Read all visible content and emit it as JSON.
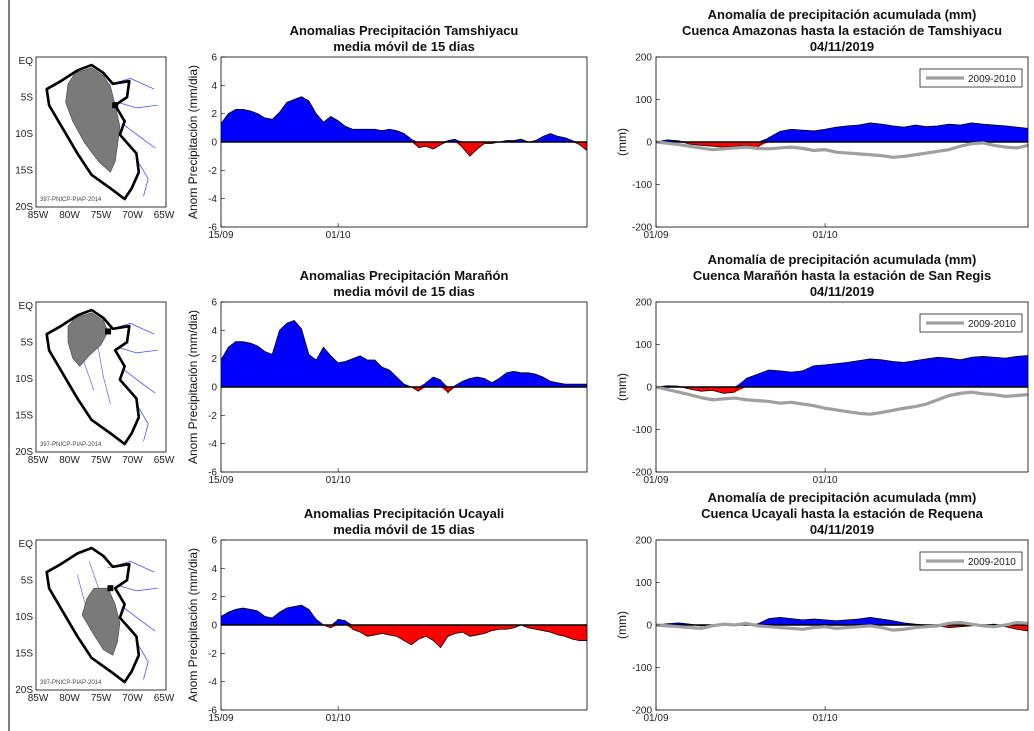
{
  "rows": [
    {
      "map": {
        "lat_ticks": [
          "EQ",
          "5S",
          "10S",
          "15S",
          "20S"
        ],
        "lon_ticks": [
          "85W",
          "80W",
          "75W",
          "70W",
          "65W"
        ],
        "watermark": "397-PNICP-PIAP-2014",
        "highlight": "amazonas"
      },
      "anomaly": {
        "title_lines": [
          "Anomalias Precipitación Tamshiyacu",
          "media móvil de 15 dias"
        ],
        "ylabel": "Anom Precipitación (mm/dia)",
        "ylim": [
          -6,
          6
        ],
        "yticks": [
          6,
          4,
          2,
          0,
          -2,
          -4,
          -6
        ],
        "xticks": [
          {
            "label": "15/09",
            "day": 0
          },
          {
            "label": "01/10",
            "day": 16
          }
        ],
        "x_range": [
          0,
          50
        ],
        "positive_color": "#0000ff",
        "negative_color": "#ff0000",
        "series_x": [
          0,
          1,
          2,
          3,
          4,
          5,
          6,
          7,
          8,
          9,
          10,
          11,
          12,
          13,
          14,
          15,
          16,
          17,
          18,
          19,
          20,
          21,
          22,
          23,
          24,
          25,
          26,
          27,
          28,
          29,
          30,
          31,
          32,
          33,
          34,
          35,
          36,
          37,
          38,
          39,
          40,
          41,
          42,
          43,
          44,
          45,
          46,
          47,
          48,
          49,
          50
        ],
        "series_y": [
          1.3,
          2.0,
          2.3,
          2.3,
          2.2,
          2.0,
          1.7,
          1.6,
          2.1,
          2.8,
          3.0,
          3.2,
          2.9,
          2.0,
          1.4,
          1.8,
          1.5,
          1.1,
          0.9,
          0.9,
          0.9,
          0.9,
          0.8,
          0.9,
          0.8,
          0.6,
          0.2,
          -0.4,
          -0.3,
          -0.5,
          -0.2,
          0.1,
          0.2,
          -0.4,
          -1.0,
          -0.5,
          -0.1,
          -0.1,
          0.0,
          0.1,
          0.1,
          0.2,
          0.0,
          0.1,
          0.4,
          0.6,
          0.4,
          0.3,
          0.1,
          -0.2,
          -0.6
        ]
      },
      "cumulative": {
        "title_lines": [
          "Anomalía de precipitación acumulada (mm)",
          "Cuenca Amazonas hasta la estación de Tamshiyacu",
          "04/11/2019"
        ],
        "ylabel": "(mm)",
        "ylim": [
          -200,
          200
        ],
        "yticks": [
          200,
          100,
          0,
          -100,
          -200
        ],
        "xticks": [
          {
            "label": "01/09",
            "day": 0
          },
          {
            "label": "01/10",
            "day": 30
          }
        ],
        "x_range": [
          0,
          66
        ],
        "legend": "2009-2010",
        "legend_color": "#a0a0a0",
        "series_x": [
          0,
          2,
          4,
          6,
          8,
          10,
          12,
          14,
          16,
          18,
          20,
          22,
          24,
          26,
          28,
          30,
          32,
          34,
          36,
          38,
          40,
          42,
          44,
          46,
          48,
          50,
          52,
          54,
          56,
          58,
          60,
          62,
          64,
          66
        ],
        "current": [
          0,
          5,
          3,
          -5,
          -8,
          -10,
          -12,
          -10,
          -8,
          -12,
          10,
          25,
          30,
          28,
          26,
          30,
          35,
          38,
          40,
          45,
          42,
          38,
          35,
          40,
          36,
          38,
          42,
          40,
          45,
          42,
          40,
          38,
          35,
          32
        ],
        "reference": [
          0,
          -3,
          -6,
          -10,
          -14,
          -18,
          -16,
          -14,
          -12,
          -15,
          -16,
          -14,
          -12,
          -15,
          -20,
          -18,
          -24,
          -26,
          -28,
          -30,
          -32,
          -36,
          -34,
          -30,
          -26,
          -22,
          -18,
          -10,
          -4,
          -2,
          -8,
          -12,
          -14,
          -8
        ]
      }
    },
    {
      "map": {
        "lat_ticks": [
          "EQ",
          "5S",
          "10S",
          "15S",
          "20S"
        ],
        "lon_ticks": [
          "85W",
          "80W",
          "75W",
          "70W",
          "65W"
        ],
        "watermark": "397-PNICP-PIAP-2014",
        "highlight": "maranon"
      },
      "anomaly": {
        "title_lines": [
          "Anomalias Precipitación Marañón",
          "media móvil de 15 dias"
        ],
        "ylabel": "Anom Precipitación (mm/dia)",
        "ylim": [
          -6,
          6
        ],
        "yticks": [
          6,
          4,
          2,
          0,
          -2,
          -4,
          -6
        ],
        "xticks": [
          {
            "label": "15/09",
            "day": 0
          },
          {
            "label": "01/10",
            "day": 16
          }
        ],
        "x_range": [
          0,
          50
        ],
        "positive_color": "#0000ff",
        "negative_color": "#ff0000",
        "series_x": [
          0,
          1,
          2,
          3,
          4,
          5,
          6,
          7,
          8,
          9,
          10,
          11,
          12,
          13,
          14,
          15,
          16,
          17,
          18,
          19,
          20,
          21,
          22,
          23,
          24,
          25,
          26,
          27,
          28,
          29,
          30,
          31,
          32,
          33,
          34,
          35,
          36,
          37,
          38,
          39,
          40,
          41,
          42,
          43,
          44,
          45,
          46,
          47,
          48,
          49,
          50
        ],
        "series_y": [
          1.9,
          2.8,
          3.2,
          3.2,
          3.1,
          2.9,
          2.5,
          2.3,
          4.0,
          4.5,
          4.7,
          4.1,
          2.3,
          1.9,
          2.8,
          2.2,
          1.7,
          1.8,
          2.0,
          2.2,
          1.9,
          1.9,
          1.4,
          1.2,
          0.7,
          0.2,
          0.0,
          -0.3,
          0.3,
          0.7,
          0.5,
          -0.4,
          0.1,
          0.4,
          0.6,
          0.7,
          0.6,
          0.3,
          0.6,
          1.0,
          1.1,
          1.0,
          1.0,
          0.9,
          0.7,
          0.4,
          0.3,
          0.2,
          0.2,
          0.2,
          0.2
        ]
      },
      "cumulative": {
        "title_lines": [
          "Anomalía de precipitación acumulada (mm)",
          "Cuenca Marañón hasta la estación de San Regis",
          "04/11/2019"
        ],
        "ylabel": "(mm)",
        "ylim": [
          -200,
          200
        ],
        "yticks": [
          200,
          100,
          0,
          -100,
          -200
        ],
        "xticks": [
          {
            "label": "01/09",
            "day": 0
          },
          {
            "label": "01/10",
            "day": 30
          }
        ],
        "x_range": [
          0,
          66
        ],
        "legend": "2009-2010",
        "legend_color": "#a0a0a0",
        "series_x": [
          0,
          2,
          4,
          6,
          8,
          10,
          12,
          14,
          16,
          18,
          20,
          22,
          24,
          26,
          28,
          30,
          32,
          34,
          36,
          38,
          40,
          42,
          44,
          46,
          48,
          50,
          52,
          54,
          56,
          58,
          60,
          62,
          64,
          66
        ],
        "current": [
          0,
          3,
          2,
          -5,
          -10,
          -8,
          -15,
          -12,
          20,
          30,
          40,
          38,
          35,
          38,
          50,
          52,
          55,
          58,
          62,
          66,
          64,
          60,
          58,
          62,
          66,
          70,
          68,
          64,
          70,
          72,
          70,
          68,
          72,
          74
        ],
        "reference": [
          0,
          -6,
          -12,
          -18,
          -25,
          -30,
          -28,
          -26,
          -30,
          -32,
          -34,
          -38,
          -36,
          -40,
          -44,
          -50,
          -54,
          -58,
          -62,
          -64,
          -60,
          -55,
          -50,
          -46,
          -40,
          -30,
          -20,
          -15,
          -12,
          -16,
          -18,
          -22,
          -20,
          -18
        ]
      }
    },
    {
      "map": {
        "lat_ticks": [
          "EQ",
          "5S",
          "10S",
          "15S",
          "20S"
        ],
        "lon_ticks": [
          "85W",
          "80W",
          "75W",
          "70W",
          "65W"
        ],
        "watermark": "397-PNICP-PIAP-2014",
        "highlight": "ucayali"
      },
      "anomaly": {
        "title_lines": [
          "Anomalias Precipitación Ucayali",
          "media móvil de 15 dias"
        ],
        "ylabel": "Anom Precipitación (mm/dia)",
        "ylim": [
          -6,
          6
        ],
        "yticks": [
          6,
          4,
          2,
          0,
          -2,
          -4,
          -6
        ],
        "xticks": [
          {
            "label": "15/09",
            "day": 0
          },
          {
            "label": "01/10",
            "day": 16
          }
        ],
        "x_range": [
          0,
          50
        ],
        "positive_color": "#0000ff",
        "negative_color": "#ff0000",
        "series_x": [
          0,
          1,
          2,
          3,
          4,
          5,
          6,
          7,
          8,
          9,
          10,
          11,
          12,
          13,
          14,
          15,
          16,
          17,
          18,
          19,
          20,
          21,
          22,
          23,
          24,
          25,
          26,
          27,
          28,
          29,
          30,
          31,
          32,
          33,
          34,
          35,
          36,
          37,
          38,
          39,
          40,
          41,
          42,
          43,
          44,
          45,
          46,
          47,
          48,
          49,
          50
        ],
        "series_y": [
          0.6,
          0.9,
          1.1,
          1.2,
          1.1,
          1.0,
          0.6,
          0.5,
          0.9,
          1.2,
          1.3,
          1.4,
          1.1,
          0.4,
          0.0,
          -0.2,
          0.4,
          0.3,
          -0.3,
          -0.5,
          -0.8,
          -0.7,
          -0.6,
          -0.7,
          -0.8,
          -1.1,
          -1.4,
          -1.0,
          -0.8,
          -1.1,
          -1.6,
          -0.8,
          -0.6,
          -0.5,
          -0.8,
          -0.7,
          -0.6,
          -0.4,
          -0.3,
          -0.3,
          -0.2,
          0.0,
          -0.2,
          -0.3,
          -0.4,
          -0.5,
          -0.7,
          -0.8,
          -1.0,
          -1.1,
          -1.1
        ]
      },
      "cumulative": {
        "title_lines": [
          "Anomalía de precipitación acumulada (mm)",
          "Cuenca Ucayali hasta la estación de Requena",
          "04/11/2019"
        ],
        "ylabel": "(mm)",
        "ylim": [
          -200,
          200
        ],
        "yticks": [
          200,
          100,
          0,
          -100,
          -200
        ],
        "xticks": [
          {
            "label": "01/09",
            "day": 0
          },
          {
            "label": "01/10",
            "day": 30
          }
        ],
        "x_range": [
          0,
          66
        ],
        "legend": "2009-2010",
        "legend_color": "#a0a0a0",
        "series_x": [
          0,
          2,
          4,
          6,
          8,
          10,
          12,
          14,
          16,
          18,
          20,
          22,
          24,
          26,
          28,
          30,
          32,
          34,
          36,
          38,
          40,
          42,
          44,
          46,
          48,
          50,
          52,
          54,
          56,
          58,
          60,
          62,
          64,
          66
        ],
        "current": [
          0,
          3,
          5,
          2,
          -2,
          0,
          2,
          -2,
          4,
          2,
          15,
          18,
          15,
          12,
          14,
          12,
          10,
          12,
          14,
          18,
          14,
          10,
          5,
          2,
          0,
          -2,
          -6,
          -4,
          -2,
          0,
          2,
          -4,
          -10,
          -14
        ],
        "reference": [
          0,
          -2,
          -4,
          -6,
          -8,
          -2,
          2,
          0,
          4,
          -2,
          -4,
          -6,
          -8,
          -10,
          -6,
          -4,
          -8,
          -6,
          -4,
          -2,
          -6,
          -12,
          -10,
          -6,
          -4,
          -2,
          4,
          6,
          2,
          -2,
          -4,
          0,
          6,
          4
        ]
      }
    }
  ]
}
